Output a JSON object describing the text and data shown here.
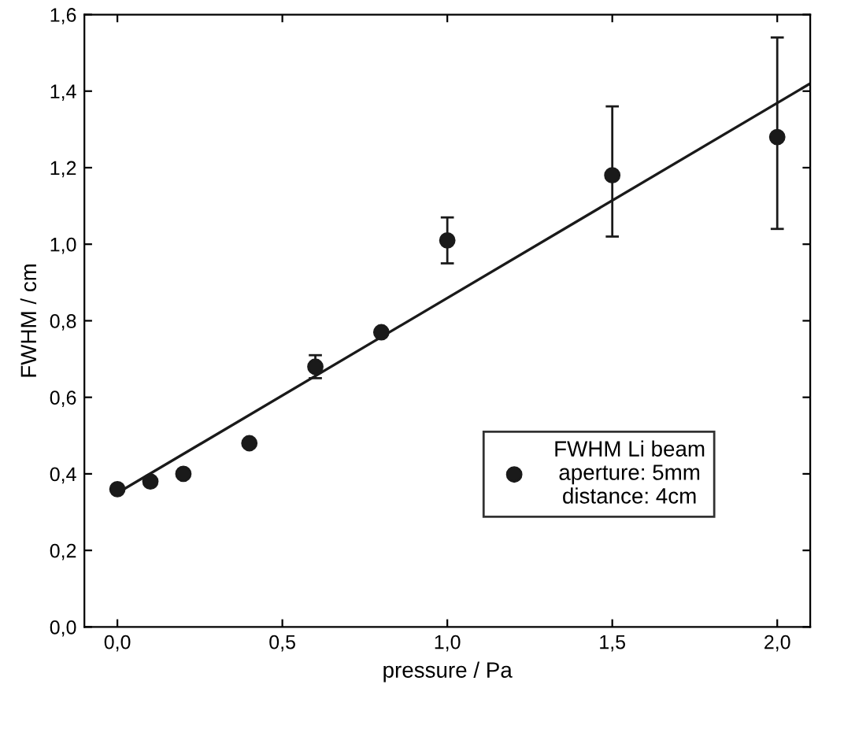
{
  "chart_data": {
    "type": "scatter",
    "xlabel": "pressure / Pa",
    "ylabel": "FWHM / cm",
    "series": [
      {
        "name": "FWHM Li beam\naperture: 5mm\ndistance: 4cm",
        "marker": "circle",
        "color": "#1a1a1a",
        "x": [
          0.0,
          0.1,
          0.2,
          0.4,
          0.6,
          0.8,
          1.0,
          1.5,
          2.0
        ],
        "values": [
          0.36,
          0.38,
          0.4,
          0.48,
          0.68,
          0.77,
          1.01,
          1.18,
          1.28
        ],
        "errors": [
          null,
          null,
          null,
          null,
          0.03,
          null,
          [
            0.95,
            1.07
          ],
          [
            1.02,
            1.36
          ],
          [
            1.04,
            1.54
          ]
        ]
      },
      {
        "type": "line",
        "color": "#1a1a1a",
        "x": [
          0.0,
          2.1
        ],
        "values": [
          0.35,
          1.42
        ]
      }
    ],
    "xlim": [
      -0.1,
      2.1
    ],
    "ylim": [
      0.0,
      1.6
    ],
    "xticks": [
      {
        "value": 0.0,
        "label": "0,0"
      },
      {
        "value": 0.5,
        "label": "0,5"
      },
      {
        "value": 1.0,
        "label": "1,0"
      },
      {
        "value": 1.5,
        "label": "1,5"
      },
      {
        "value": 2.0,
        "label": "2,0"
      }
    ],
    "yticks": [
      {
        "value": 0.0,
        "label": "0,0"
      },
      {
        "value": 0.2,
        "label": "0,2"
      },
      {
        "value": 0.4,
        "label": "0,4"
      },
      {
        "value": 0.6,
        "label": "0,6"
      },
      {
        "value": 0.8,
        "label": "0,8"
      },
      {
        "value": 1.0,
        "label": "1,0"
      },
      {
        "value": 1.2,
        "label": "1,2"
      },
      {
        "value": 1.4,
        "label": "1,4"
      },
      {
        "value": 1.6,
        "label": "1,6"
      }
    ],
    "legend": "bottom right",
    "grid": false
  }
}
